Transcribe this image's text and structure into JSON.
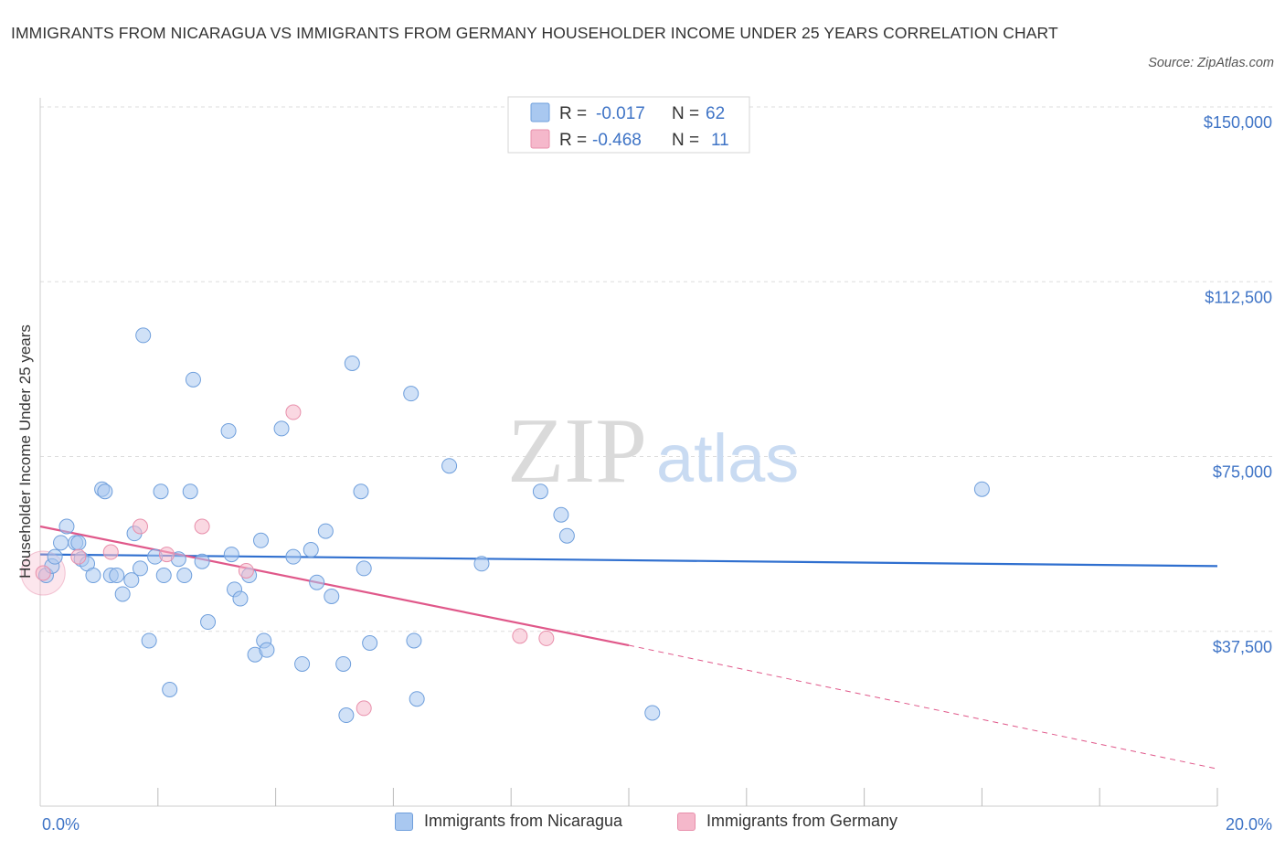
{
  "header": {
    "title": "IMMIGRANTS FROM NICARAGUA VS IMMIGRANTS FROM GERMANY HOUSEHOLDER INCOME UNDER 25 YEARS CORRELATION CHART",
    "source": "Source: ZipAtlas.com"
  },
  "watermark": {
    "zip": "ZIP",
    "atlas": "atlas"
  },
  "stats_legend": {
    "rows": [
      {
        "r_label": "R =",
        "r_value": "-0.017",
        "n_label": "N =",
        "n_value": "62",
        "color": "#a9c8f0"
      },
      {
        "r_label": "R =",
        "r_value": "-0.468",
        "n_label": "N =",
        "n_value": "11",
        "color": "#f5b8cb"
      }
    ]
  },
  "chart_data": {
    "type": "scatter",
    "title": "IMMIGRANTS FROM NICARAGUA VS IMMIGRANTS FROM GERMANY HOUSEHOLDER INCOME UNDER 25 YEARS CORRELATION CHART",
    "xlabel": "",
    "ylabel": "Householder Income Under 25 years",
    "xlim": [
      0,
      20
    ],
    "ylim": [
      0,
      150000
    ],
    "x_tick_labels": [
      "0.0%",
      "20.0%"
    ],
    "y_ticks": [
      {
        "value": 150000,
        "label": "$150,000"
      },
      {
        "value": 112500,
        "label": "$112,500"
      },
      {
        "value": 75000,
        "label": "$75,000"
      },
      {
        "value": 37500,
        "label": "$37,500"
      }
    ],
    "grid": true,
    "legend_position": "bottom",
    "series": [
      {
        "name": "Immigrants from Nicaragua",
        "color": "#a9c8f0",
        "stroke": "#6f9fdc",
        "trend_color": "#2f6fcf",
        "trend": {
          "x0": 0,
          "y0": 54000,
          "x1": 20,
          "y1": 51500
        },
        "points": [
          [
            0.1,
            49500
          ],
          [
            0.2,
            51500
          ],
          [
            0.25,
            53500
          ],
          [
            0.35,
            56500
          ],
          [
            0.45,
            60000
          ],
          [
            0.6,
            56500
          ],
          [
            0.65,
            56500
          ],
          [
            0.7,
            53000
          ],
          [
            0.8,
            52000
          ],
          [
            0.9,
            49500
          ],
          [
            1.05,
            68000
          ],
          [
            1.1,
            67500
          ],
          [
            1.2,
            49500
          ],
          [
            1.3,
            49500
          ],
          [
            1.4,
            45500
          ],
          [
            1.55,
            48500
          ],
          [
            1.6,
            58500
          ],
          [
            1.7,
            51000
          ],
          [
            1.75,
            101000
          ],
          [
            1.85,
            35500
          ],
          [
            1.95,
            53500
          ],
          [
            2.05,
            67500
          ],
          [
            2.1,
            49500
          ],
          [
            2.2,
            25000
          ],
          [
            2.35,
            53000
          ],
          [
            2.45,
            49500
          ],
          [
            2.55,
            67500
          ],
          [
            2.6,
            91500
          ],
          [
            2.75,
            52500
          ],
          [
            2.85,
            39500
          ],
          [
            3.2,
            80500
          ],
          [
            3.25,
            54000
          ],
          [
            3.3,
            46500
          ],
          [
            3.4,
            44500
          ],
          [
            3.55,
            49500
          ],
          [
            3.65,
            32500
          ],
          [
            3.75,
            57000
          ],
          [
            3.8,
            35500
          ],
          [
            3.85,
            33500
          ],
          [
            4.1,
            81000
          ],
          [
            4.3,
            53500
          ],
          [
            4.45,
            30500
          ],
          [
            4.6,
            55000
          ],
          [
            4.7,
            48000
          ],
          [
            4.85,
            59000
          ],
          [
            4.95,
            45000
          ],
          [
            5.15,
            30500
          ],
          [
            5.2,
            19500
          ],
          [
            5.3,
            95000
          ],
          [
            5.45,
            67500
          ],
          [
            5.5,
            51000
          ],
          [
            5.6,
            35000
          ],
          [
            6.3,
            88500
          ],
          [
            6.35,
            35500
          ],
          [
            6.4,
            23000
          ],
          [
            6.95,
            73000
          ],
          [
            7.5,
            52000
          ],
          [
            8.5,
            67500
          ],
          [
            8.85,
            62500
          ],
          [
            8.95,
            58000
          ],
          [
            10.4,
            20000
          ],
          [
            16.0,
            68000
          ]
        ]
      },
      {
        "name": "Immigrants from Germany",
        "color": "#f5b8cb",
        "stroke": "#e88fab",
        "trend_color": "#e0588a",
        "trend": {
          "x0": 0,
          "y0": 60000,
          "x1": 10,
          "y1": 34500,
          "x_end": 20,
          "y_end": 8000
        },
        "points": [
          [
            0.05,
            50000
          ],
          [
            0.65,
            53500
          ],
          [
            1.2,
            54500
          ],
          [
            1.7,
            60000
          ],
          [
            2.15,
            54000
          ],
          [
            2.75,
            60000
          ],
          [
            3.5,
            50500
          ],
          [
            4.3,
            84500
          ],
          [
            5.5,
            21000
          ],
          [
            8.15,
            36500
          ],
          [
            8.6,
            36000
          ]
        ]
      }
    ]
  }
}
